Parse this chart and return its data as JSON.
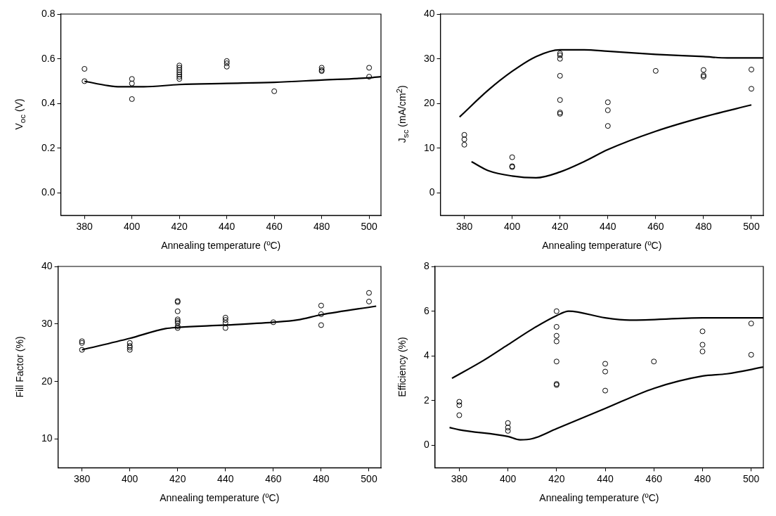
{
  "chart_data": [
    {
      "type": "scatter",
      "xlabel": "Annealing temperature (ºC)",
      "ylabel": "V$_{oc}$ (V)",
      "xlim": [
        370,
        505
      ],
      "xticks": [
        380,
        400,
        420,
        440,
        460,
        480,
        500
      ],
      "ylim": [
        -0.1,
        0.8
      ],
      "yticks": [
        {
          "value": 0,
          "label": "0.0"
        },
        {
          "value": 0.2,
          "label": "0.2"
        },
        {
          "value": 0.4,
          "label": "0.4"
        },
        {
          "value": 0.6,
          "label": "0.6"
        },
        {
          "value": 0.8,
          "label": "0.8"
        }
      ],
      "grid": false,
      "legend": false,
      "series": [
        {
          "type": "scatter",
          "color": "#000000",
          "marker": "circle",
          "x": [
            380,
            380,
            400,
            400,
            400,
            420,
            420,
            420,
            420,
            420,
            420,
            420,
            440,
            440,
            440,
            460,
            480,
            480,
            480,
            500,
            500
          ],
          "values": [
            0.555,
            0.5,
            0.51,
            0.49,
            0.42,
            0.57,
            0.56,
            0.55,
            0.54,
            0.53,
            0.52,
            0.51,
            0.59,
            0.58,
            0.565,
            0.455,
            0.56,
            0.55,
            0.545,
            0.56,
            0.52
          ]
        },
        {
          "type": "line",
          "color": "#000000",
          "marker": "none",
          "x": [
            380,
            390,
            395,
            405,
            420,
            440,
            460,
            480,
            500,
            505
          ],
          "values": [
            0.5,
            0.48,
            0.475,
            0.475,
            0.485,
            0.49,
            0.495,
            0.505,
            0.515,
            0.52
          ]
        }
      ]
    },
    {
      "type": "scatter",
      "xlabel": "Annealing temperature (ºC)",
      "ylabel": "J$_{sc}$ (mA/cm$^{2}$)",
      "xlim": [
        370,
        505
      ],
      "xticks": [
        380,
        400,
        420,
        440,
        460,
        480,
        500
      ],
      "ylim": [
        -5,
        40
      ],
      "yticks": [
        0,
        10,
        20,
        30,
        40
      ],
      "grid": false,
      "legend": false,
      "series": [
        {
          "type": "scatter",
          "color": "#000000",
          "marker": "circle",
          "x": [
            380,
            380,
            380,
            400,
            400,
            400,
            420,
            420,
            420,
            420,
            420,
            420,
            420,
            440,
            440,
            440,
            460,
            480,
            480,
            480,
            500,
            500
          ],
          "values": [
            13,
            12,
            10.8,
            8,
            6,
            5.8,
            31.2,
            30.8,
            30,
            26.2,
            20.8,
            18,
            17.7,
            20.3,
            18.5,
            15,
            27.3,
            27.5,
            26.3,
            26,
            27.6,
            23.3
          ]
        },
        {
          "type": "line",
          "color": "#000000",
          "marker": "none",
          "x": [
            378,
            390,
            400,
            410,
            420,
            430,
            440,
            460,
            480,
            490,
            505
          ],
          "values": [
            17,
            23,
            27.2,
            30.5,
            32,
            32,
            31.7,
            31,
            30.5,
            30.2,
            30.2
          ]
        },
        {
          "type": "line",
          "color": "#000000",
          "marker": "none",
          "x": [
            383,
            390,
            400,
            410,
            420,
            430,
            440,
            460,
            480,
            500
          ],
          "values": [
            7,
            5,
            3.8,
            3.4,
            4.7,
            7,
            9.7,
            13.8,
            17,
            19.7
          ]
        }
      ]
    },
    {
      "type": "scatter",
      "xlabel": "Annealing temperature (ºC)",
      "ylabel": "Fill Factor (%)",
      "xlim": [
        370,
        505
      ],
      "xticks": [
        380,
        400,
        420,
        440,
        460,
        480,
        500
      ],
      "ylim": [
        5,
        40
      ],
      "yticks": [
        10,
        20,
        30,
        40
      ],
      "grid": false,
      "legend": false,
      "series": [
        {
          "type": "scatter",
          "color": "#000000",
          "marker": "circle",
          "x": [
            380,
            380,
            380,
            400,
            400,
            400,
            400,
            420,
            420,
            420,
            420,
            420,
            420,
            420,
            420,
            440,
            440,
            440,
            440,
            460,
            480,
            480,
            480,
            500,
            500
          ],
          "values": [
            27,
            26.7,
            25.5,
            26.7,
            26.2,
            25.9,
            25.5,
            34,
            33.8,
            32.2,
            30.8,
            30.5,
            30.2,
            29.6,
            29.3,
            31.1,
            30.7,
            30.2,
            29.3,
            30.3,
            33.2,
            31.7,
            29.8,
            35.4,
            33.9
          ]
        },
        {
          "type": "line",
          "color": "#000000",
          "marker": "none",
          "x": [
            380,
            400,
            415,
            420,
            440,
            460,
            470,
            480,
            503
          ],
          "values": [
            25.5,
            27.5,
            29.2,
            29.4,
            29.8,
            30.3,
            30.7,
            31.6,
            33.1
          ]
        }
      ]
    },
    {
      "type": "scatter",
      "xlabel": "Annealing temperature (ºC)",
      "ylabel": "Efficiency (%)",
      "xlim": [
        370,
        505
      ],
      "xticks": [
        380,
        400,
        420,
        440,
        460,
        480,
        500
      ],
      "ylim": [
        -1,
        8
      ],
      "yticks": [
        0,
        2,
        4,
        6,
        8
      ],
      "grid": false,
      "legend": false,
      "series": [
        {
          "type": "scatter",
          "color": "#000000",
          "marker": "circle",
          "x": [
            380,
            380,
            380,
            400,
            400,
            400,
            420,
            420,
            420,
            420,
            420,
            420,
            420,
            440,
            440,
            440,
            460,
            480,
            480,
            480,
            500,
            500
          ],
          "values": [
            1.95,
            1.8,
            1.35,
            1,
            0.8,
            0.65,
            6,
            5.3,
            4.9,
            4.65,
            3.75,
            2.75,
            2.7,
            3.65,
            3.3,
            2.45,
            3.75,
            5.1,
            4.5,
            4.2,
            5.45,
            4.05
          ]
        },
        {
          "type": "line",
          "color": "#000000",
          "marker": "none",
          "x": [
            377,
            390,
            400,
            410,
            420,
            425,
            440,
            450,
            480,
            505
          ],
          "values": [
            3,
            3.8,
            4.5,
            5.2,
            5.8,
            6,
            5.7,
            5.6,
            5.7,
            5.7
          ]
        },
        {
          "type": "line",
          "color": "#000000",
          "marker": "none",
          "x": [
            376,
            380,
            400,
            405,
            410,
            420,
            440,
            460,
            480,
            490,
            505
          ],
          "values": [
            0.8,
            0.7,
            0.4,
            0.25,
            0.3,
            0.75,
            1.65,
            2.55,
            3.1,
            3.2,
            3.5
          ]
        }
      ]
    }
  ]
}
